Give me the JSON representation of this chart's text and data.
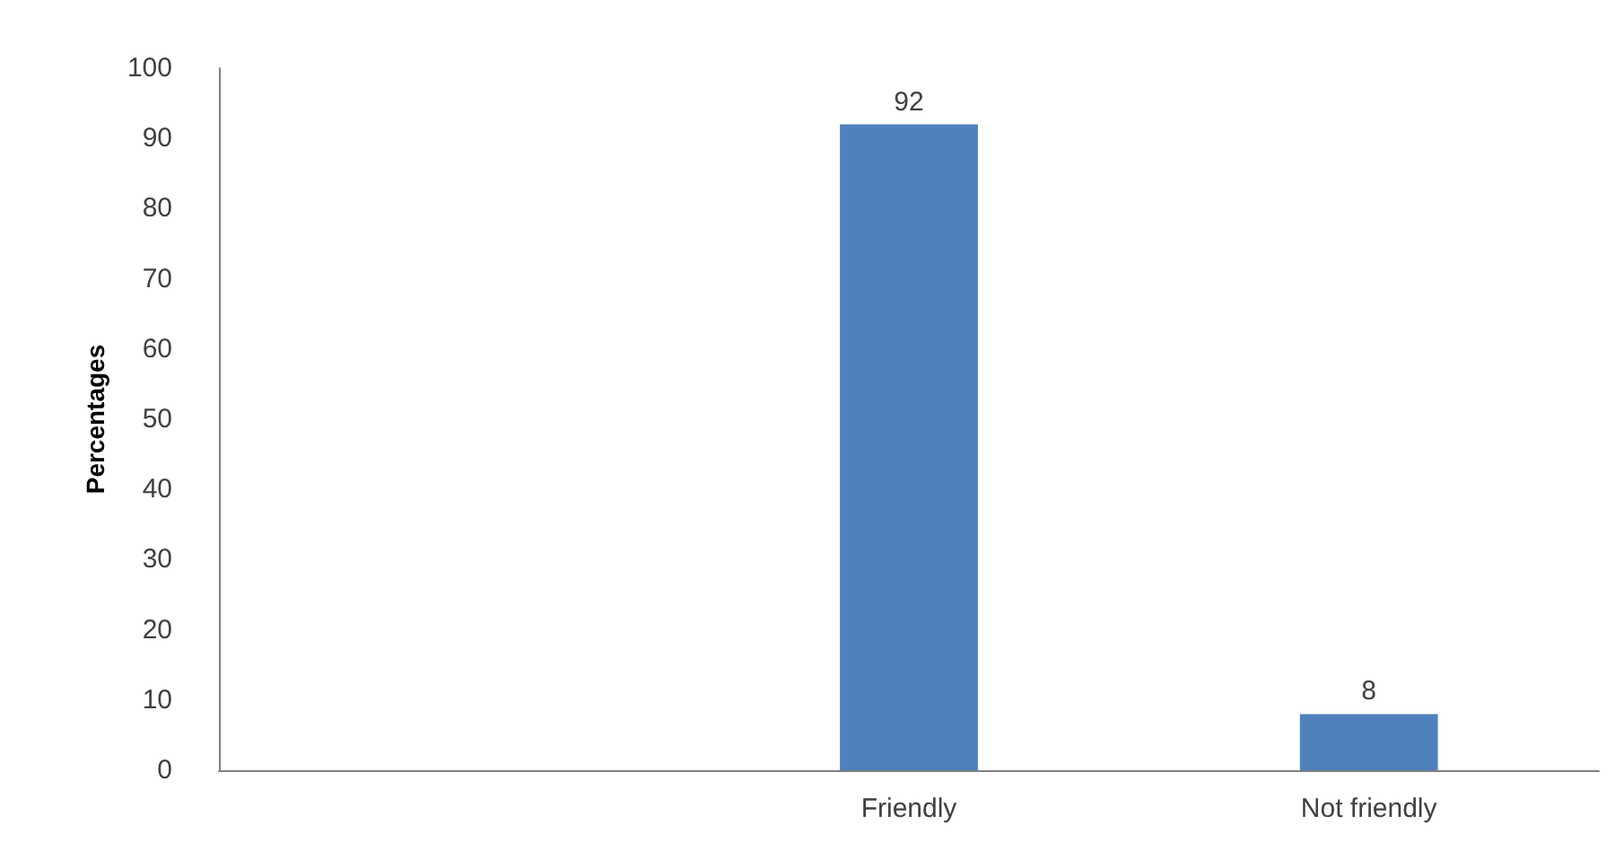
{
  "chart_data": {
    "type": "bar",
    "ylabel": "Percentages",
    "categories": [
      null,
      "Friendly",
      "Not friendly"
    ],
    "values": [
      null,
      92,
      8
    ],
    "color": "#4f81bd",
    "ylim": [
      0,
      100
    ],
    "yticks": [
      0,
      10,
      20,
      30,
      40,
      50,
      60,
      70,
      80,
      90,
      100
    ],
    "grid": false,
    "data_labels": true
  }
}
